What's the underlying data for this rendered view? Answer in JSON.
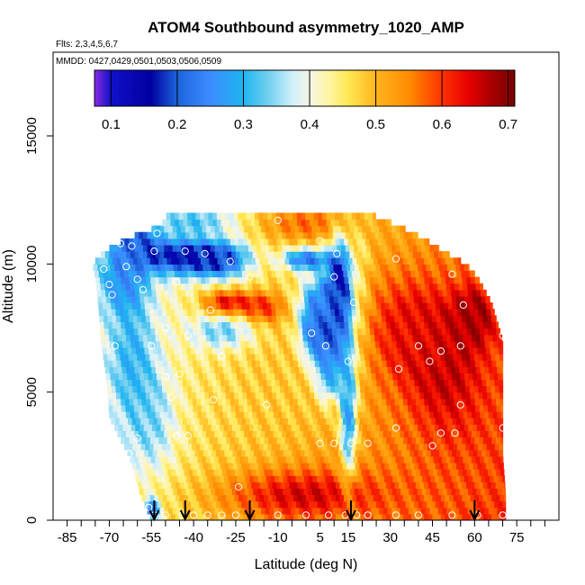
{
  "chart_data": {
    "type": "heatmap",
    "title": "ATOM4 Southbound asymmetry_1020_AMP",
    "subtitle_flights": "Flts: 2,3,4,5,6,7",
    "subtitle_dates": "MMDD: 0427,0429,0501,0503,0506,0509",
    "xlabel": "Latitude (deg N)",
    "ylabel": "Altitude (m)",
    "xlim": [
      -90,
      90
    ],
    "ylim": [
      0,
      17500
    ],
    "xticks_labeled": [
      -85,
      -70,
      -55,
      -40,
      -25,
      -10,
      5,
      15,
      30,
      45,
      60,
      75
    ],
    "xticks_minor": [
      -80,
      -75,
      -65,
      -60,
      -50,
      -45,
      -35,
      -30,
      -20,
      -15,
      -5,
      0,
      10,
      20,
      25,
      35,
      40,
      50,
      55,
      65,
      70,
      80,
      85
    ],
    "yticks": [
      0,
      5000,
      10000,
      15000
    ],
    "colorbar": {
      "ticks": [
        0.1,
        0.2,
        0.3,
        0.4,
        0.5,
        0.6,
        0.7
      ],
      "range": [
        0.075,
        0.71
      ],
      "colors": [
        "#8A2BE2",
        "#1010C8",
        "#0000A0",
        "#1E64DC",
        "#3C8CFF",
        "#1EB4F0",
        "#78D2F0",
        "#D2F0FA",
        "#F5F5E6",
        "#FFF5A0",
        "#FFE650",
        "#FFB41E",
        "#FF8C00",
        "#FF3200",
        "#E60000",
        "#A00000",
        "#7A0000"
      ],
      "stops": [
        0.075,
        0.1,
        0.16,
        0.2,
        0.25,
        0.3,
        0.34,
        0.375,
        0.4,
        0.43,
        0.46,
        0.5,
        0.55,
        0.6,
        0.64,
        0.68,
        0.71
      ]
    },
    "arrows_latitude": [
      -54,
      -43,
      -20,
      16,
      60
    ],
    "domain_edges": [
      {
        "alt": 0,
        "lat_min": -55,
        "lat_max": 71
      },
      {
        "alt": 1000,
        "lat_min": -59,
        "lat_max": 71
      },
      {
        "alt": 2500,
        "lat_min": -63,
        "lat_max": 70
      },
      {
        "alt": 4000,
        "lat_min": -70,
        "lat_max": 70
      },
      {
        "alt": 5500,
        "lat_min": -71,
        "lat_max": 70
      },
      {
        "alt": 7000,
        "lat_min": -73,
        "lat_max": 70
      },
      {
        "alt": 8500,
        "lat_min": -74,
        "lat_max": 66
      },
      {
        "alt": 9500,
        "lat_min": -75,
        "lat_max": 61
      },
      {
        "alt": 10000,
        "lat_min": -76,
        "lat_max": 57
      },
      {
        "alt": 10500,
        "lat_min": -72,
        "lat_max": 49
      },
      {
        "alt": 11000,
        "lat_min": -64,
        "lat_max": 42
      },
      {
        "alt": 11500,
        "lat_min": -52,
        "lat_max": 33
      },
      {
        "alt": 12000,
        "lat_min": -49,
        "lat_max": 22
      }
    ],
    "hotspots": [
      {
        "lat": -83,
        "alt": 6000,
        "value": 0.55,
        "sigma_lat": 4,
        "sigma_alt": 3500
      },
      {
        "lat": -65,
        "alt": 9500,
        "value": 0.25,
        "sigma_lat": 6,
        "sigma_alt": 900
      },
      {
        "lat": -60,
        "alt": 10800,
        "value": 0.2,
        "sigma_lat": 5,
        "sigma_alt": 500
      },
      {
        "lat": -45,
        "alt": 10300,
        "value": 0.15,
        "sigma_lat": 9,
        "sigma_alt": 500
      },
      {
        "lat": -30,
        "alt": 10200,
        "value": 0.2,
        "sigma_lat": 7,
        "sigma_alt": 500
      },
      {
        "lat": -40,
        "alt": 11700,
        "value": 0.32,
        "sigma_lat": 10,
        "sigma_alt": 350
      },
      {
        "lat": 0,
        "alt": 11600,
        "value": 0.57,
        "sigma_lat": 12,
        "sigma_alt": 500
      },
      {
        "lat": 0,
        "alt": 10200,
        "value": 0.22,
        "sigma_lat": 6,
        "sigma_alt": 300
      },
      {
        "lat": -62,
        "alt": 6300,
        "value": 0.3,
        "sigma_lat": 6,
        "sigma_alt": 1800
      },
      {
        "lat": -55,
        "alt": 3800,
        "value": 0.35,
        "sigma_lat": 6,
        "sigma_alt": 1400
      },
      {
        "lat": -30,
        "alt": 7400,
        "value": 0.33,
        "sigma_lat": 8,
        "sigma_alt": 500
      },
      {
        "lat": -28,
        "alt": 8500,
        "value": 0.65,
        "sigma_lat": 6,
        "sigma_alt": 350
      },
      {
        "lat": -15,
        "alt": 8300,
        "value": 0.62,
        "sigma_lat": 5,
        "sigma_alt": 400
      },
      {
        "lat": 5,
        "alt": 8500,
        "value": 0.25,
        "sigma_lat": 5,
        "sigma_alt": 800
      },
      {
        "lat": 5,
        "alt": 7200,
        "value": 0.1,
        "sigma_lat": 4,
        "sigma_alt": 700
      },
      {
        "lat": 12,
        "alt": 8900,
        "value": 0.12,
        "sigma_lat": 3,
        "sigma_alt": 1400
      },
      {
        "lat": 8,
        "alt": 6200,
        "value": 0.18,
        "sigma_lat": 3,
        "sigma_alt": 900
      },
      {
        "lat": 15,
        "alt": 4500,
        "value": 0.25,
        "sigma_lat": 2,
        "sigma_alt": 2000
      },
      {
        "lat": -5,
        "alt": 5500,
        "value": 0.48,
        "sigma_lat": 12,
        "sigma_alt": 1500
      },
      {
        "lat": 35,
        "alt": 7500,
        "value": 0.62,
        "sigma_lat": 10,
        "sigma_alt": 1500
      },
      {
        "lat": 50,
        "alt": 6000,
        "value": 0.66,
        "sigma_lat": 10,
        "sigma_alt": 2000
      },
      {
        "lat": 60,
        "alt": 8000,
        "value": 0.68,
        "sigma_lat": 5,
        "sigma_alt": 800
      },
      {
        "lat": 0,
        "alt": 1000,
        "value": 0.65,
        "sigma_lat": 20,
        "sigma_alt": 700
      },
      {
        "lat": -55,
        "alt": 400,
        "value": 0.2,
        "sigma_lat": 2,
        "sigma_alt": 300
      },
      {
        "lat": 20,
        "alt": 9000,
        "value": 0.45,
        "sigma_lat": 2,
        "sigma_alt": 2500
      }
    ],
    "observation_points": [
      {
        "lat": -54,
        "alt": 200
      },
      {
        "lat": -50,
        "alt": 200
      },
      {
        "lat": -44,
        "alt": 200
      },
      {
        "lat": -40,
        "alt": 200
      },
      {
        "lat": -35,
        "alt": 200
      },
      {
        "lat": -30,
        "alt": 200
      },
      {
        "lat": -25,
        "alt": 200
      },
      {
        "lat": -10,
        "alt": 200
      },
      {
        "lat": 0,
        "alt": 200
      },
      {
        "lat": 8,
        "alt": 200
      },
      {
        "lat": 14,
        "alt": 200
      },
      {
        "lat": 18,
        "alt": 200
      },
      {
        "lat": 22,
        "alt": 200
      },
      {
        "lat": 32,
        "alt": 200
      },
      {
        "lat": 40,
        "alt": 200
      },
      {
        "lat": 52,
        "alt": 200
      },
      {
        "lat": 61,
        "alt": 200
      },
      {
        "lat": 70,
        "alt": 200
      },
      {
        "lat": -56,
        "alt": 500
      },
      {
        "lat": -64,
        "alt": 1700
      },
      {
        "lat": -61,
        "alt": 1300
      },
      {
        "lat": -63,
        "alt": 2600
      },
      {
        "lat": -24,
        "alt": 1300
      },
      {
        "lat": -42,
        "alt": 3300
      },
      {
        "lat": -46,
        "alt": 3300
      },
      {
        "lat": -60,
        "alt": 3200
      },
      {
        "lat": -81,
        "alt": 4300
      },
      {
        "lat": -48,
        "alt": 4800
      },
      {
        "lat": -33,
        "alt": 4700
      },
      {
        "lat": -14,
        "alt": 4500
      },
      {
        "lat": -50,
        "alt": 5600
      },
      {
        "lat": -45,
        "alt": 5700
      },
      {
        "lat": 5,
        "alt": 3000
      },
      {
        "lat": 10,
        "alt": 3000
      },
      {
        "lat": 16,
        "alt": 3000
      },
      {
        "lat": 22,
        "alt": 3000
      },
      {
        "lat": 32,
        "alt": 3600
      },
      {
        "lat": 45,
        "alt": 2900
      },
      {
        "lat": 48,
        "alt": 3400
      },
      {
        "lat": 53,
        "alt": 3400
      },
      {
        "lat": 70,
        "alt": 3600
      },
      {
        "lat": 55,
        "alt": 4500
      },
      {
        "lat": 44,
        "alt": 6200
      },
      {
        "lat": 40,
        "alt": 6800
      },
      {
        "lat": 33,
        "alt": 5900
      },
      {
        "lat": 48,
        "alt": 6600
      },
      {
        "lat": 55,
        "alt": 6800
      },
      {
        "lat": 70,
        "alt": 7200
      },
      {
        "lat": -30,
        "alt": 6400
      },
      {
        "lat": 2,
        "alt": 7300
      },
      {
        "lat": 7,
        "alt": 6800
      },
      {
        "lat": 15,
        "alt": 6200
      },
      {
        "lat": 17,
        "alt": 8500
      },
      {
        "lat": -75,
        "alt": 6800
      },
      {
        "lat": -68,
        "alt": 6800
      },
      {
        "lat": -55,
        "alt": 6800
      },
      {
        "lat": -50,
        "alt": 7500
      },
      {
        "lat": -42,
        "alt": 7200
      },
      {
        "lat": -58,
        "alt": 9000
      },
      {
        "lat": -46,
        "alt": 9300
      },
      {
        "lat": -34,
        "alt": 8200
      },
      {
        "lat": -20,
        "alt": 9500
      },
      {
        "lat": 10,
        "alt": 9500
      },
      {
        "lat": -70,
        "alt": 9200
      },
      {
        "lat": -77,
        "alt": 9400
      },
      {
        "lat": -69,
        "alt": 8800
      },
      {
        "lat": -62,
        "alt": 10700
      },
      {
        "lat": -54,
        "alt": 10500
      },
      {
        "lat": -43,
        "alt": 10500
      },
      {
        "lat": -36,
        "alt": 10400
      },
      {
        "lat": -27,
        "alt": 10100
      },
      {
        "lat": 11,
        "alt": 10400
      },
      {
        "lat": 32,
        "alt": 10200
      },
      {
        "lat": 52,
        "alt": 9600
      },
      {
        "lat": 56,
        "alt": 8400
      },
      {
        "lat": -10,
        "alt": 11700
      },
      {
        "lat": 5,
        "alt": 10900
      },
      {
        "lat": -53,
        "alt": 11200
      },
      {
        "lat": -60,
        "alt": 9400
      },
      {
        "lat": -64,
        "alt": 9900
      },
      {
        "lat": -66,
        "alt": 10800
      },
      {
        "lat": -72,
        "alt": 9800
      }
    ]
  }
}
